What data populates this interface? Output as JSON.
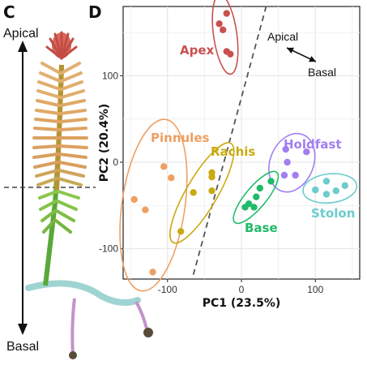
{
  "panel_c": {
    "letter": "C",
    "top_label": "Apical",
    "bottom_label": "Basal"
  },
  "chart_data": {
    "type": "scatter",
    "panel_letter": "D",
    "xlabel": "PC1 (23.5%)",
    "ylabel": "PC2 (20.4%)",
    "xlim": [
      -160,
      160
    ],
    "ylim": [
      -135,
      180
    ],
    "xticks": [
      -100,
      0,
      100
    ],
    "yticks": [
      -100,
      0,
      100
    ],
    "grid": true,
    "divider": {
      "x": [
        -65,
        35
      ],
      "y": [
        -130,
        185
      ]
    },
    "direction_arrow": {
      "start_label": "Apical",
      "end_label": "Basal"
    },
    "groups": [
      {
        "name": "Apex",
        "color": "#c9504f",
        "points": [
          [
            -30,
            160
          ],
          [
            -20,
            172
          ],
          [
            -25,
            153
          ],
          [
            -20,
            128
          ],
          [
            -15,
            125
          ]
        ]
      },
      {
        "name": "Pinnules",
        "color": "#ee9f62",
        "points": [
          [
            -105,
            -5
          ],
          [
            -95,
            -18
          ],
          [
            -145,
            -43
          ],
          [
            -130,
            -55
          ],
          [
            -120,
            -127
          ]
        ]
      },
      {
        "name": "Rachis",
        "color": "#c9aa12",
        "points": [
          [
            -40,
            -12
          ],
          [
            -40,
            -17
          ],
          [
            -65,
            -35
          ],
          [
            -40,
            -33
          ],
          [
            -82,
            -80
          ]
        ]
      },
      {
        "name": "Holdfast",
        "color": "#a17ff0",
        "points": [
          [
            60,
            15
          ],
          [
            88,
            12
          ],
          [
            62,
            0
          ],
          [
            58,
            -15
          ],
          [
            73,
            -15
          ]
        ]
      },
      {
        "name": "Base",
        "color": "#1ebb68",
        "points": [
          [
            40,
            -22
          ],
          [
            25,
            -30
          ],
          [
            20,
            -40
          ],
          [
            10,
            -48
          ],
          [
            17,
            -52
          ],
          [
            5,
            -52
          ]
        ]
      },
      {
        "name": "Stolon",
        "color": "#6dcccc",
        "points": [
          [
            115,
            -22
          ],
          [
            100,
            -32
          ],
          [
            115,
            -37
          ],
          [
            128,
            -33
          ],
          [
            140,
            -27
          ]
        ]
      }
    ]
  }
}
